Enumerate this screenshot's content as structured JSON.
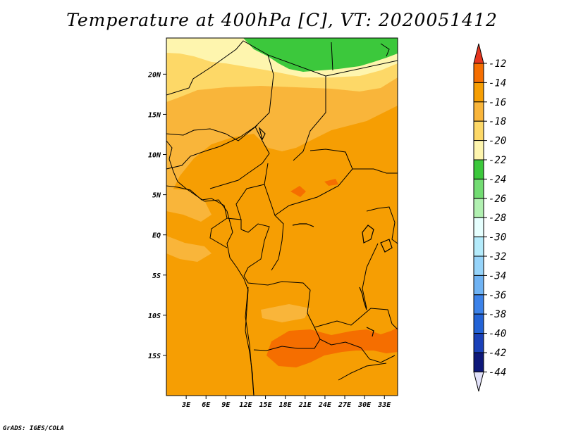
{
  "title": "Temperature at 400hPa [C], VT: 2020051412",
  "credit": "GrADS: IGES/COLA",
  "lon_labels": [
    "3E",
    "6E",
    "9E",
    "12E",
    "15E",
    "18E",
    "21E",
    "24E",
    "27E",
    "30E",
    "33E"
  ],
  "lon_values": [
    3,
    6,
    9,
    12,
    15,
    18,
    21,
    24,
    27,
    30,
    33
  ],
  "lat_labels": [
    "20N",
    "15N",
    "10N",
    "5N",
    "EQ",
    "5S",
    "10S",
    "15S"
  ],
  "lat_values": [
    20,
    15,
    10,
    5,
    0,
    -5,
    -10,
    -15
  ],
  "map_extent": {
    "lon_min": 0,
    "lon_max": 35,
    "lat_min": -20,
    "lat_max": 24.5
  },
  "colorbar": {
    "labels": [
      "-12",
      "-14",
      "-16",
      "-18",
      "-20",
      "-22",
      "-24",
      "-26",
      "-28",
      "-30",
      "-32",
      "-34",
      "-36",
      "-38",
      "-40",
      "-42",
      "-44"
    ],
    "colors": [
      "#e6361f",
      "#f56e00",
      "#f69e03",
      "#f9b53a",
      "#fdd867",
      "#fef5ae",
      "#3cc83c",
      "#73dc73",
      "#b1f0b1",
      "#e6fffe",
      "#b4ebfb",
      "#96d4fa",
      "#6fb3f4",
      "#3c82e9",
      "#2363d6",
      "#1a41b9",
      "#0e187a",
      "#e2e2fa"
    ]
  },
  "colors": {
    "band_m12": "#f56e00",
    "band_m14": "#f69e03",
    "band_m16": "#f9b53a",
    "band_m18": "#fdd867",
    "band_m20": "#fef5ae",
    "band_m22": "#3cc83c"
  }
}
